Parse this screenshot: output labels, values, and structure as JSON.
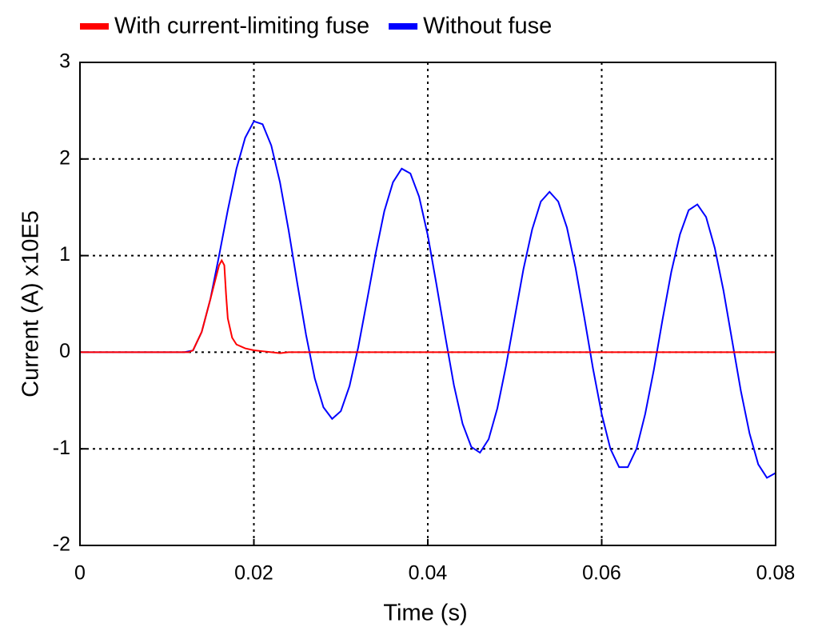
{
  "chart_data": {
    "type": "line",
    "xlabel": "Time (s)",
    "ylabel": "Current (A) x10E5",
    "xlim": [
      0,
      0.08
    ],
    "ylim": [
      -2,
      3
    ],
    "xticks": [
      0,
      0.02,
      0.04,
      0.06,
      0.08
    ],
    "yticks": [
      -2,
      -1,
      0,
      1,
      2,
      3
    ],
    "grid": true,
    "legend": "top",
    "series": [
      {
        "name": "With current-limiting fuse",
        "color": "#ff0000",
        "x": [
          0,
          0.0125,
          0.013,
          0.014,
          0.015,
          0.016,
          0.0163,
          0.0166,
          0.0168,
          0.017,
          0.0175,
          0.018,
          0.019,
          0.02,
          0.021,
          0.022,
          0.023,
          0.024,
          0.08
        ],
        "values": [
          0,
          0,
          0.02,
          0.21,
          0.55,
          0.9,
          0.95,
          0.9,
          0.6,
          0.35,
          0.15,
          0.08,
          0.04,
          0.02,
          0.01,
          0,
          -0.01,
          0,
          0
        ]
      },
      {
        "name": "Without fuse",
        "color": "#0000ff",
        "x": [
          0,
          0.012,
          0.013,
          0.014,
          0.015,
          0.016,
          0.017,
          0.018,
          0.019,
          0.02,
          0.021,
          0.022,
          0.023,
          0.024,
          0.025,
          0.026,
          0.027,
          0.028,
          0.029,
          0.03,
          0.031,
          0.032,
          0.033,
          0.034,
          0.035,
          0.036,
          0.037,
          0.038,
          0.039,
          0.04,
          0.041,
          0.042,
          0.043,
          0.044,
          0.045,
          0.046,
          0.047,
          0.048,
          0.049,
          0.05,
          0.051,
          0.052,
          0.053,
          0.054,
          0.055,
          0.056,
          0.057,
          0.058,
          0.059,
          0.06,
          0.061,
          0.062,
          0.063,
          0.064,
          0.065,
          0.066,
          0.067,
          0.068,
          0.069,
          0.07,
          0.071,
          0.072,
          0.073,
          0.074,
          0.075,
          0.076,
          0.077,
          0.078,
          0.079,
          0.08
        ],
        "values": [
          0,
          0,
          0.018,
          0.21,
          0.55,
          1.0,
          1.47,
          1.9,
          2.22,
          2.39,
          2.36,
          2.14,
          1.76,
          1.26,
          0.71,
          0.18,
          -0.27,
          -0.57,
          -0.69,
          -0.61,
          -0.35,
          0.05,
          0.53,
          1.02,
          1.46,
          1.76,
          1.9,
          1.85,
          1.61,
          1.21,
          0.7,
          0.17,
          -0.34,
          -0.74,
          -0.98,
          -1.04,
          -0.9,
          -0.58,
          -0.14,
          0.36,
          0.86,
          1.27,
          1.56,
          1.66,
          1.56,
          1.29,
          0.87,
          0.36,
          -0.17,
          -0.64,
          -1.0,
          -1.19,
          -1.19,
          -1.0,
          -0.64,
          -0.18,
          0.34,
          0.83,
          1.22,
          1.47,
          1.53,
          1.4,
          1.08,
          0.64,
          0.12,
          -0.4,
          -0.84,
          -1.16,
          -1.3,
          -1.25
        ]
      }
    ]
  }
}
